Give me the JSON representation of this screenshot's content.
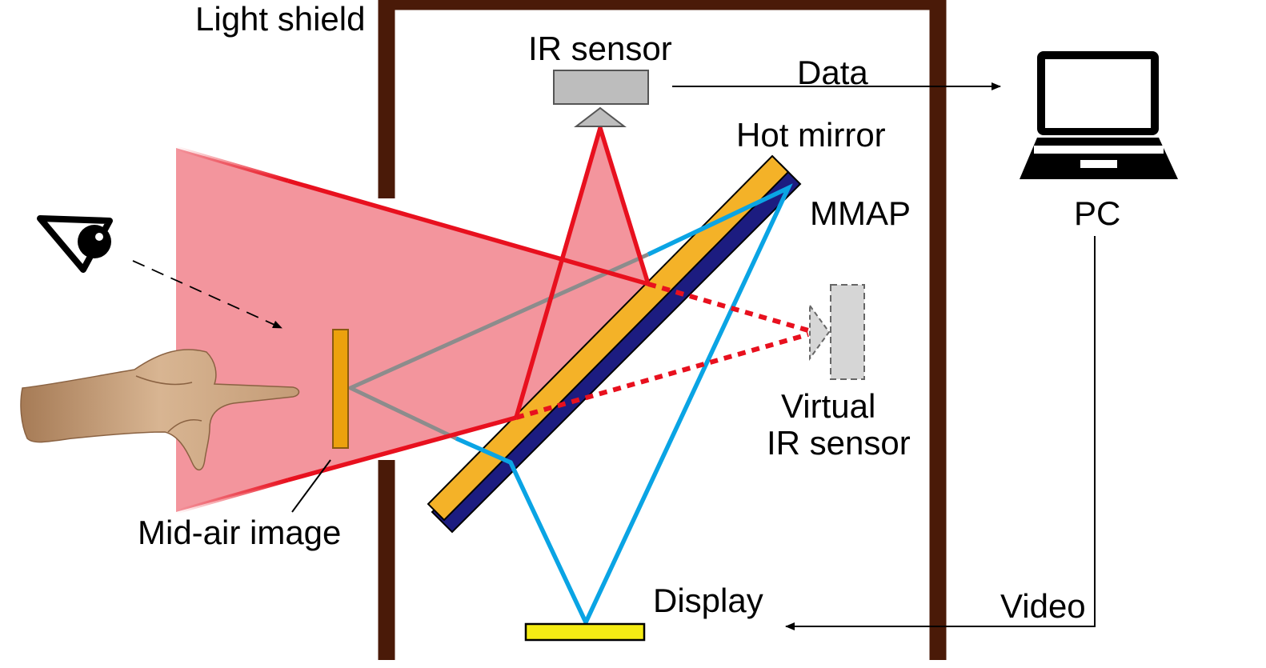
{
  "labels": {
    "light_shield": "Light shield",
    "ir_sensor": "IR sensor",
    "data": "Data",
    "hot_mirror": "Hot mirror",
    "mmap": "MMAP",
    "pc": "PC",
    "virtual_ir_sensor_line1": "Virtual",
    "virtual_ir_sensor_line2": "IR sensor",
    "mid_air_image": "Mid-air image",
    "display": "Display",
    "video": "Video"
  },
  "colors": {
    "shield": "#4a1a08",
    "ir_ray": "#e8101e",
    "ir_fill": "#f3959d",
    "display_ray": "#0aa4e4",
    "viewer_ray": "#8c8c8c",
    "hot_mirror": "#f4b228",
    "mmap": "#1c1c80",
    "display": "#f5ec14",
    "mid_air_image": "#eca10d",
    "sensor": "#bdbdbd",
    "virtual_sensor": "#d6d6d6",
    "hand": "#c9a07a"
  },
  "icons": {
    "eye": "eye-icon",
    "hand": "pointing-hand",
    "pc": "laptop-icon"
  }
}
